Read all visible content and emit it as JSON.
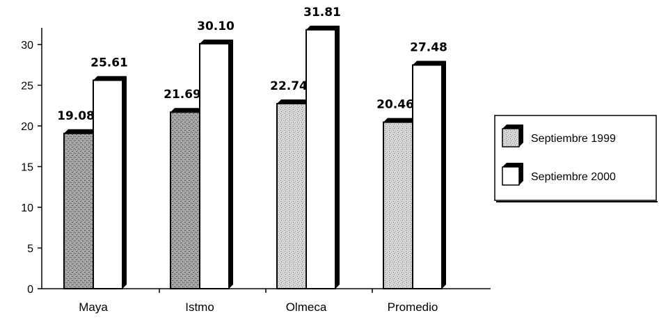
{
  "chart_data": {
    "type": "bar",
    "categories": [
      "Maya",
      "Istmo",
      "Olmeca",
      "Promedio"
    ],
    "series": [
      {
        "name": "Septiembre 1999",
        "values": [
          19.08,
          21.69,
          22.74,
          20.46
        ],
        "labels": [
          "19.08",
          "21.69",
          "22.74",
          "20.46"
        ]
      },
      {
        "name": "Septiembre 2000",
        "values": [
          25.61,
          30.1,
          31.81,
          27.48
        ],
        "labels": [
          "25.61",
          "30.10",
          "31.81",
          "27.48"
        ]
      }
    ],
    "ylim": [
      0,
      32
    ],
    "yticks": [
      0,
      5,
      10,
      15,
      20,
      25,
      30
    ],
    "xlabel": "",
    "ylabel": "",
    "title": "",
    "grid": false,
    "legend": "right"
  },
  "colors": {
    "series_1999_fill": "#c9c9c9",
    "series_1999_dark_fill": "#8a8a8a",
    "series_2000_fill": "#ffffff",
    "bar_edge": "#000000"
  }
}
